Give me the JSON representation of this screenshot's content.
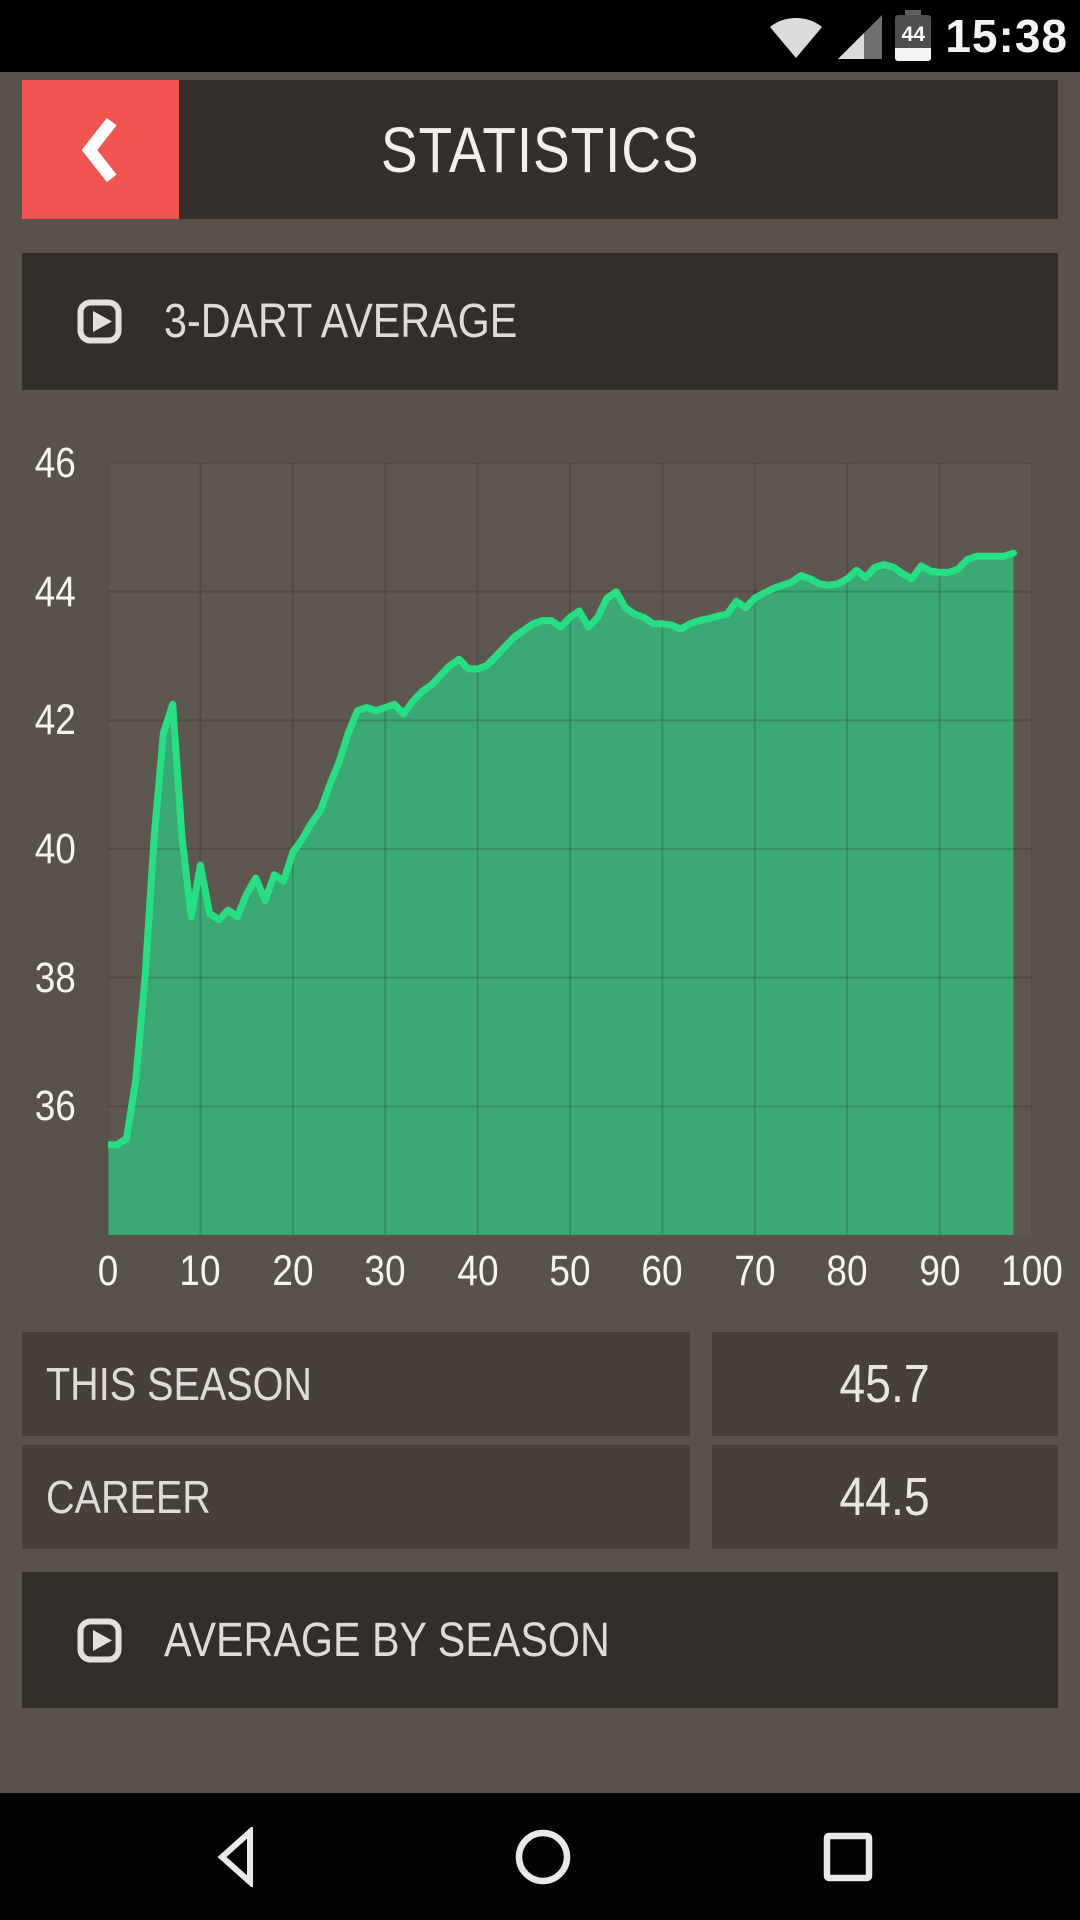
{
  "status_bar": {
    "time": "15:38",
    "battery_percent": "44"
  },
  "header": {
    "title": "STATISTICS",
    "accent_color": "#F2554F"
  },
  "sections": {
    "dart_average": {
      "label": "3-DART AVERAGE",
      "icon": "play-icon"
    },
    "average_by_season": {
      "label": "AVERAGE BY SEASON",
      "icon": "play-icon"
    }
  },
  "stats": [
    {
      "label": "THIS SEASON",
      "value": "45.7"
    },
    {
      "label": "CAREER",
      "value": "44.5"
    }
  ],
  "chart_data": {
    "type": "area",
    "title": "3-DART AVERAGE",
    "xlabel": "",
    "ylabel": "",
    "xlim": [
      0,
      100
    ],
    "ylim": [
      34,
      46
    ],
    "x_ticks": [
      0,
      10,
      20,
      30,
      40,
      50,
      60,
      70,
      80,
      90,
      100
    ],
    "y_ticks": [
      36,
      38,
      40,
      42,
      44,
      46
    ],
    "grid": true,
    "legend": "none",
    "line_color": "#27DF83",
    "fill_color": "#3CA873",
    "grid_color": "rgba(32,25,20,0.18)",
    "plot_bg": "#5D5750",
    "series": [
      {
        "name": "3-dart average",
        "x": [
          0,
          1,
          2,
          3,
          4,
          5,
          6,
          7,
          8,
          9,
          10,
          11,
          12,
          13,
          14,
          15,
          16,
          17,
          18,
          19,
          20,
          21,
          22,
          23,
          24,
          25,
          26,
          27,
          28,
          29,
          30,
          31,
          32,
          33,
          34,
          35,
          36,
          37,
          38,
          39,
          40,
          41,
          42,
          43,
          44,
          45,
          46,
          47,
          48,
          49,
          50,
          51,
          52,
          53,
          54,
          55,
          56,
          57,
          58,
          59,
          60,
          61,
          62,
          63,
          64,
          65,
          66,
          67,
          68,
          69,
          70,
          71,
          72,
          73,
          74,
          75,
          76,
          77,
          78,
          79,
          80,
          81,
          82,
          83,
          84,
          85,
          86,
          87,
          88,
          89,
          90,
          91,
          92,
          93,
          94,
          95,
          96,
          97,
          98
        ],
        "y": [
          35.4,
          35.4,
          35.5,
          36.4,
          38.0,
          40.2,
          41.8,
          42.25,
          40.2,
          38.95,
          39.75,
          39.0,
          38.9,
          39.05,
          38.95,
          39.3,
          39.55,
          39.2,
          39.6,
          39.5,
          39.95,
          40.15,
          40.4,
          40.6,
          41.0,
          41.35,
          41.8,
          42.15,
          42.2,
          42.15,
          42.2,
          42.25,
          42.1,
          42.3,
          42.45,
          42.55,
          42.7,
          42.85,
          42.95,
          42.8,
          42.8,
          42.85,
          43.0,
          43.15,
          43.3,
          43.4,
          43.5,
          43.55,
          43.55,
          43.45,
          43.6,
          43.7,
          43.45,
          43.6,
          43.9,
          44.0,
          43.75,
          43.65,
          43.6,
          43.5,
          43.5,
          43.48,
          43.42,
          43.5,
          43.55,
          43.58,
          43.62,
          43.65,
          43.85,
          43.75,
          43.9,
          43.98,
          44.05,
          44.1,
          44.15,
          44.25,
          44.2,
          44.12,
          44.1,
          44.12,
          44.2,
          44.33,
          44.22,
          44.38,
          44.42,
          44.38,
          44.28,
          44.2,
          44.4,
          44.32,
          44.3,
          44.3,
          44.35,
          44.5,
          44.55,
          44.55,
          44.55,
          44.55,
          44.6
        ]
      }
    ]
  },
  "nav_bar": {
    "back": "back-triangle-icon",
    "home": "home-circle-icon",
    "recents": "recents-square-icon"
  }
}
